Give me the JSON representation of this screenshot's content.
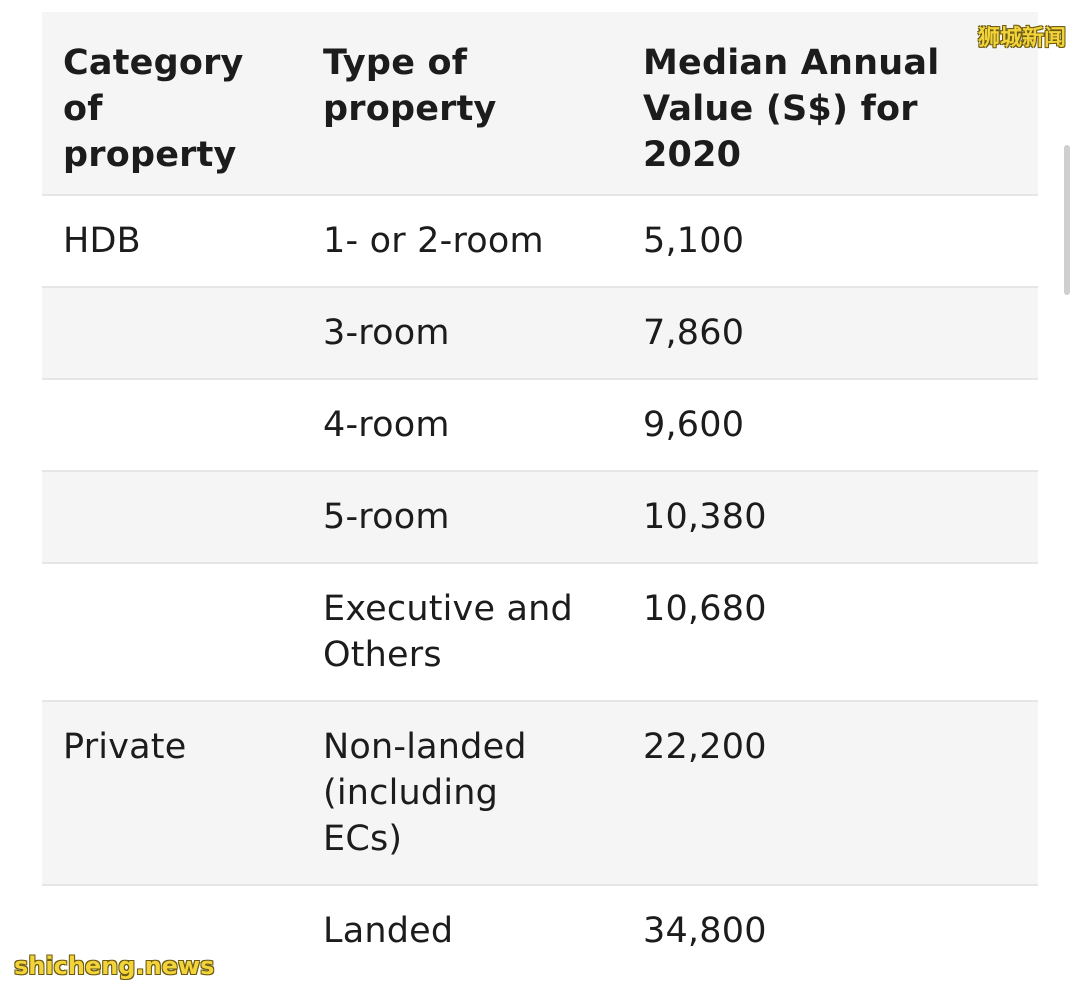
{
  "table": {
    "headers": [
      "Category of property",
      "Type of property",
      "Median Annual Value (S$) for 2020"
    ],
    "rows": [
      {
        "category": "HDB",
        "type": "1- or 2-room",
        "value": "5,100"
      },
      {
        "category": "",
        "type": "3-room",
        "value": "7,860"
      },
      {
        "category": "",
        "type": "4-room",
        "value": "9,600"
      },
      {
        "category": "",
        "type": "5-room",
        "value": "10,380"
      },
      {
        "category": "",
        "type": "Executive and Others",
        "value": "10,680"
      },
      {
        "category": "Private",
        "type": "Non-landed (including ECs)",
        "value": "22,200"
      },
      {
        "category": "",
        "type": "Landed",
        "value": "34,800"
      }
    ]
  },
  "watermarks": {
    "top_right": "狮城新闻",
    "bottom_left": "shicheng.news"
  },
  "colors": {
    "header_background": "#f5f5f5",
    "row_stripe": "#f5f5f5",
    "divider": "#e6e6e6",
    "text": "#1c1c1c",
    "watermark": "#f2d33a"
  }
}
